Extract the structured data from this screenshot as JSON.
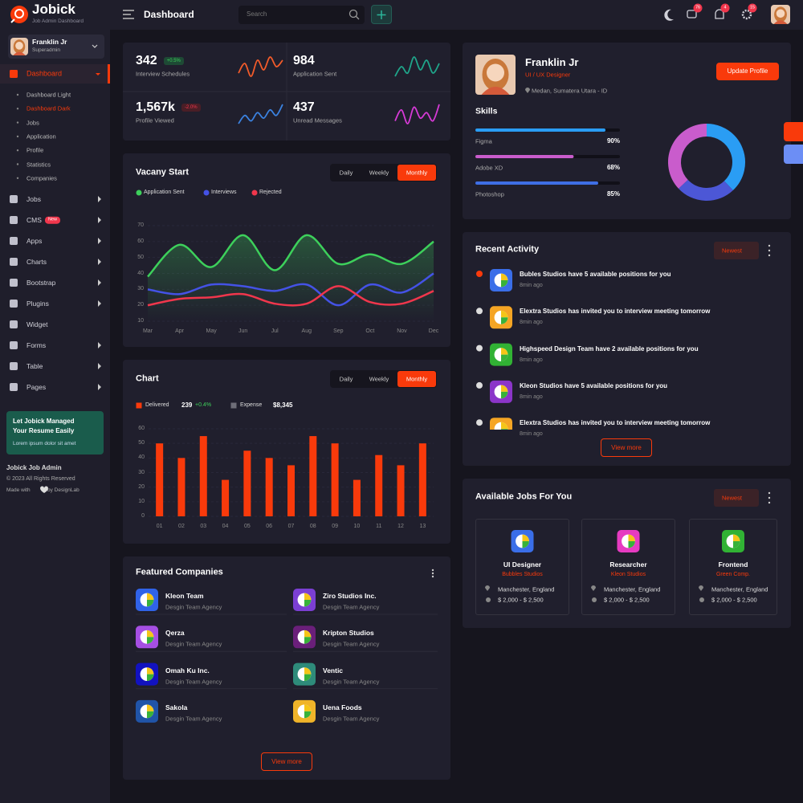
{
  "header": {
    "logo": "Jobick",
    "logo_subtitle": "Job Admin Dashboard",
    "page_title": "Dashboard",
    "search_placeholder": "Search",
    "notification_badges": [
      "76",
      "4",
      "15"
    ]
  },
  "sidebar": {
    "user": {
      "name": "Franklin Jr",
      "role": "Superadmin"
    },
    "active_menu": {
      "label": "Dashboard"
    },
    "submenu": [
      {
        "label": "Dashboard Light"
      },
      {
        "label": "Dashboard Dark",
        "active": true
      },
      {
        "label": "Jobs"
      },
      {
        "label": "Application"
      },
      {
        "label": "Profile"
      },
      {
        "label": "Statistics"
      },
      {
        "label": "Companies"
      }
    ],
    "menu": [
      {
        "label": "Jobs",
        "arrow": true
      },
      {
        "label": "CMS",
        "badge": "New",
        "arrow": true
      },
      {
        "label": "Apps",
        "arrow": true
      },
      {
        "label": "Charts",
        "arrow": true
      },
      {
        "label": "Bootstrap",
        "arrow": true
      },
      {
        "label": "Plugins",
        "arrow": true
      },
      {
        "label": "Widget"
      },
      {
        "label": "Forms",
        "arrow": true
      },
      {
        "label": "Table",
        "arrow": true
      },
      {
        "label": "Pages",
        "arrow": true
      }
    ],
    "promo": {
      "title": "Let Jobick Managed Your Resume Easily",
      "text": "Lorem ipsum dolor sit amet"
    },
    "footer": {
      "name": "Jobick Job Admin",
      "copyright": "© 2023 All Rights Reserved",
      "made_with": "Made with",
      "by": "by DesignLab"
    }
  },
  "stats": [
    {
      "value": "342",
      "change": "+0.5%",
      "change_up": true,
      "label": "Interview Schedules",
      "spark": [
        4,
        7,
        3,
        8,
        5,
        9,
        6,
        8
      ],
      "color": "#f35b2a"
    },
    {
      "value": "984",
      "label": "Application Sent",
      "spark": [
        3,
        6,
        4,
        9,
        5,
        8,
        4,
        7
      ],
      "color": "#1fa58a"
    },
    {
      "value": "1,567k",
      "change": "-2.0%",
      "change_up": false,
      "label": "Profile Viewed",
      "spark": [
        2,
        5,
        3,
        6,
        4,
        7,
        5,
        9
      ],
      "color": "#3b82e0"
    },
    {
      "value": "437",
      "label": "Unread Messages",
      "spark": [
        3,
        7,
        2,
        8,
        4,
        6,
        3,
        9
      ],
      "color": "#d63ad6"
    }
  ],
  "vacancy_chart": {
    "type": "line",
    "title": "Vacany Start",
    "tabs": [
      {
        "label": "Daily"
      },
      {
        "label": "Weekly"
      },
      {
        "label": "Monthly",
        "active": true
      }
    ],
    "categories": [
      "Mar",
      "Apr",
      "May",
      "Jun",
      "Jul",
      "Aug",
      "Sep",
      "Oct",
      "Nov",
      "Dec"
    ],
    "series": [
      {
        "name": "Application Sent",
        "color": "#3dd05b",
        "fill": true,
        "values": [
          38,
          58,
          44,
          64,
          42,
          64,
          46,
          52,
          46,
          60
        ]
      },
      {
        "name": "Interviews",
        "color": "#4452e6",
        "values": [
          30,
          27,
          33,
          32,
          29,
          33,
          20,
          33,
          28,
          40
        ]
      },
      {
        "name": "Rejected",
        "color": "#f0364c",
        "values": [
          20,
          24,
          25,
          27,
          21,
          21,
          32,
          22,
          21,
          29
        ]
      }
    ],
    "ylim": [
      10,
      70
    ],
    "yticks": [
      10,
      20,
      30,
      40,
      50,
      60,
      70
    ],
    "grid": true
  },
  "bar_chart": {
    "type": "bar",
    "title": "Chart",
    "tabs": [
      {
        "label": "Daily"
      },
      {
        "label": "Weekly"
      },
      {
        "label": "Monthly",
        "active": true
      }
    ],
    "legend": [
      {
        "name": "Delivered",
        "color": "#f93a0b",
        "value": "239",
        "change": "+0.4%"
      },
      {
        "name": "Expense",
        "color": "#6e6e78",
        "value": "$8,345"
      }
    ],
    "categories": [
      "01",
      "02",
      "03",
      "04",
      "05",
      "06",
      "07",
      "08",
      "09",
      "10",
      "11",
      "12",
      "13"
    ],
    "values": [
      50,
      40,
      55,
      25,
      45,
      40,
      35,
      55,
      50,
      25,
      42,
      35,
      50
    ],
    "color": "#f93a0b",
    "ylim": [
      0,
      60
    ],
    "yticks": [
      0,
      10,
      20,
      30,
      40,
      50,
      60
    ],
    "grid": true
  },
  "companies": {
    "title": "Featured Companies",
    "button": "View more",
    "items": [
      {
        "name": "Kleon Team",
        "subtitle": "Desgin Team Agency",
        "color": "#3063e8"
      },
      {
        "name": "Ziro Studios Inc.",
        "subtitle": "Desgin Team Agency",
        "color": "#7b3fd3"
      },
      {
        "name": "Qerza",
        "subtitle": "Desgin Team Agency",
        "color": "#a64fe3"
      },
      {
        "name": "Kripton Studios",
        "subtitle": "Desgin Team Agency",
        "color": "#6a1f7a"
      },
      {
        "name": "Omah Ku Inc.",
        "subtitle": "Desgin Team Agency",
        "color": "#1212c0"
      },
      {
        "name": "Ventic",
        "subtitle": "Desgin Team Agency",
        "color": "#2e8b7a"
      },
      {
        "name": "Sakola",
        "subtitle": "Desgin Team Agency",
        "color": "#2054a8"
      },
      {
        "name": "Uena Foods",
        "subtitle": "Desgin Team Agency",
        "color": "#f0b429"
      }
    ]
  },
  "profile": {
    "name": "Franklin Jr",
    "role": "UI / UX Designer",
    "location": "Medan, Sumatera Utara - ID",
    "button": "Update Profile",
    "skills_title": "Skills",
    "skills": [
      {
        "name": "Figma",
        "value": 90,
        "value_label": "90%",
        "color": "#2a9df4"
      },
      {
        "name": "Adobe XD",
        "value": 68,
        "value_label": "68%",
        "color": "#c95ccc"
      },
      {
        "name": "Photoshop",
        "value": 85,
        "value_label": "85%",
        "color": "#3f6fe6"
      }
    ],
    "donut": {
      "type": "pie",
      "values": [
        38,
        25,
        37
      ],
      "colors": [
        "#2a9df4",
        "#4c57d6",
        "#c95ccc"
      ]
    }
  },
  "activity": {
    "title": "Recent Activity",
    "filter": "Newest",
    "button": "View more",
    "items": [
      {
        "text": "Bubles Studios have 5 available positions for you",
        "time": "8min ago",
        "color": "#3a6ee8",
        "active": true
      },
      {
        "text": "Elextra Studios has invited you to interview meeting tomorrow",
        "time": "8min ago",
        "color": "#f5a524"
      },
      {
        "text": "Highspeed Design Team have 2 available positions for you",
        "time": "8min ago",
        "color": "#31b234"
      },
      {
        "text": "Kleon Studios have 5 available positions for you",
        "time": "8min ago",
        "color": "#8b35c9"
      },
      {
        "text": "Elextra Studios has invited you to interview meeting tomorrow",
        "time": "8min ago",
        "color": "#f5a524"
      }
    ]
  },
  "jobs": {
    "title": "Available Jobs For You",
    "filter": "Newest",
    "items": [
      {
        "title": "UI Designer",
        "company": "Bubbles Studios",
        "location": "Manchester, England",
        "salary": "$ 2,000 - $ 2,500",
        "color": "#3a6ee8"
      },
      {
        "title": "Researcher",
        "company": "Kleon Studios",
        "location": "Manchester, England",
        "salary": "$ 2,000 - $ 2,500",
        "color": "#e63bc1"
      },
      {
        "title": "Frontend",
        "company": "Green Comp.",
        "location": "Manchester, England",
        "salary": "$ 2,000 - $ 2,500",
        "color": "#31b234"
      }
    ]
  }
}
